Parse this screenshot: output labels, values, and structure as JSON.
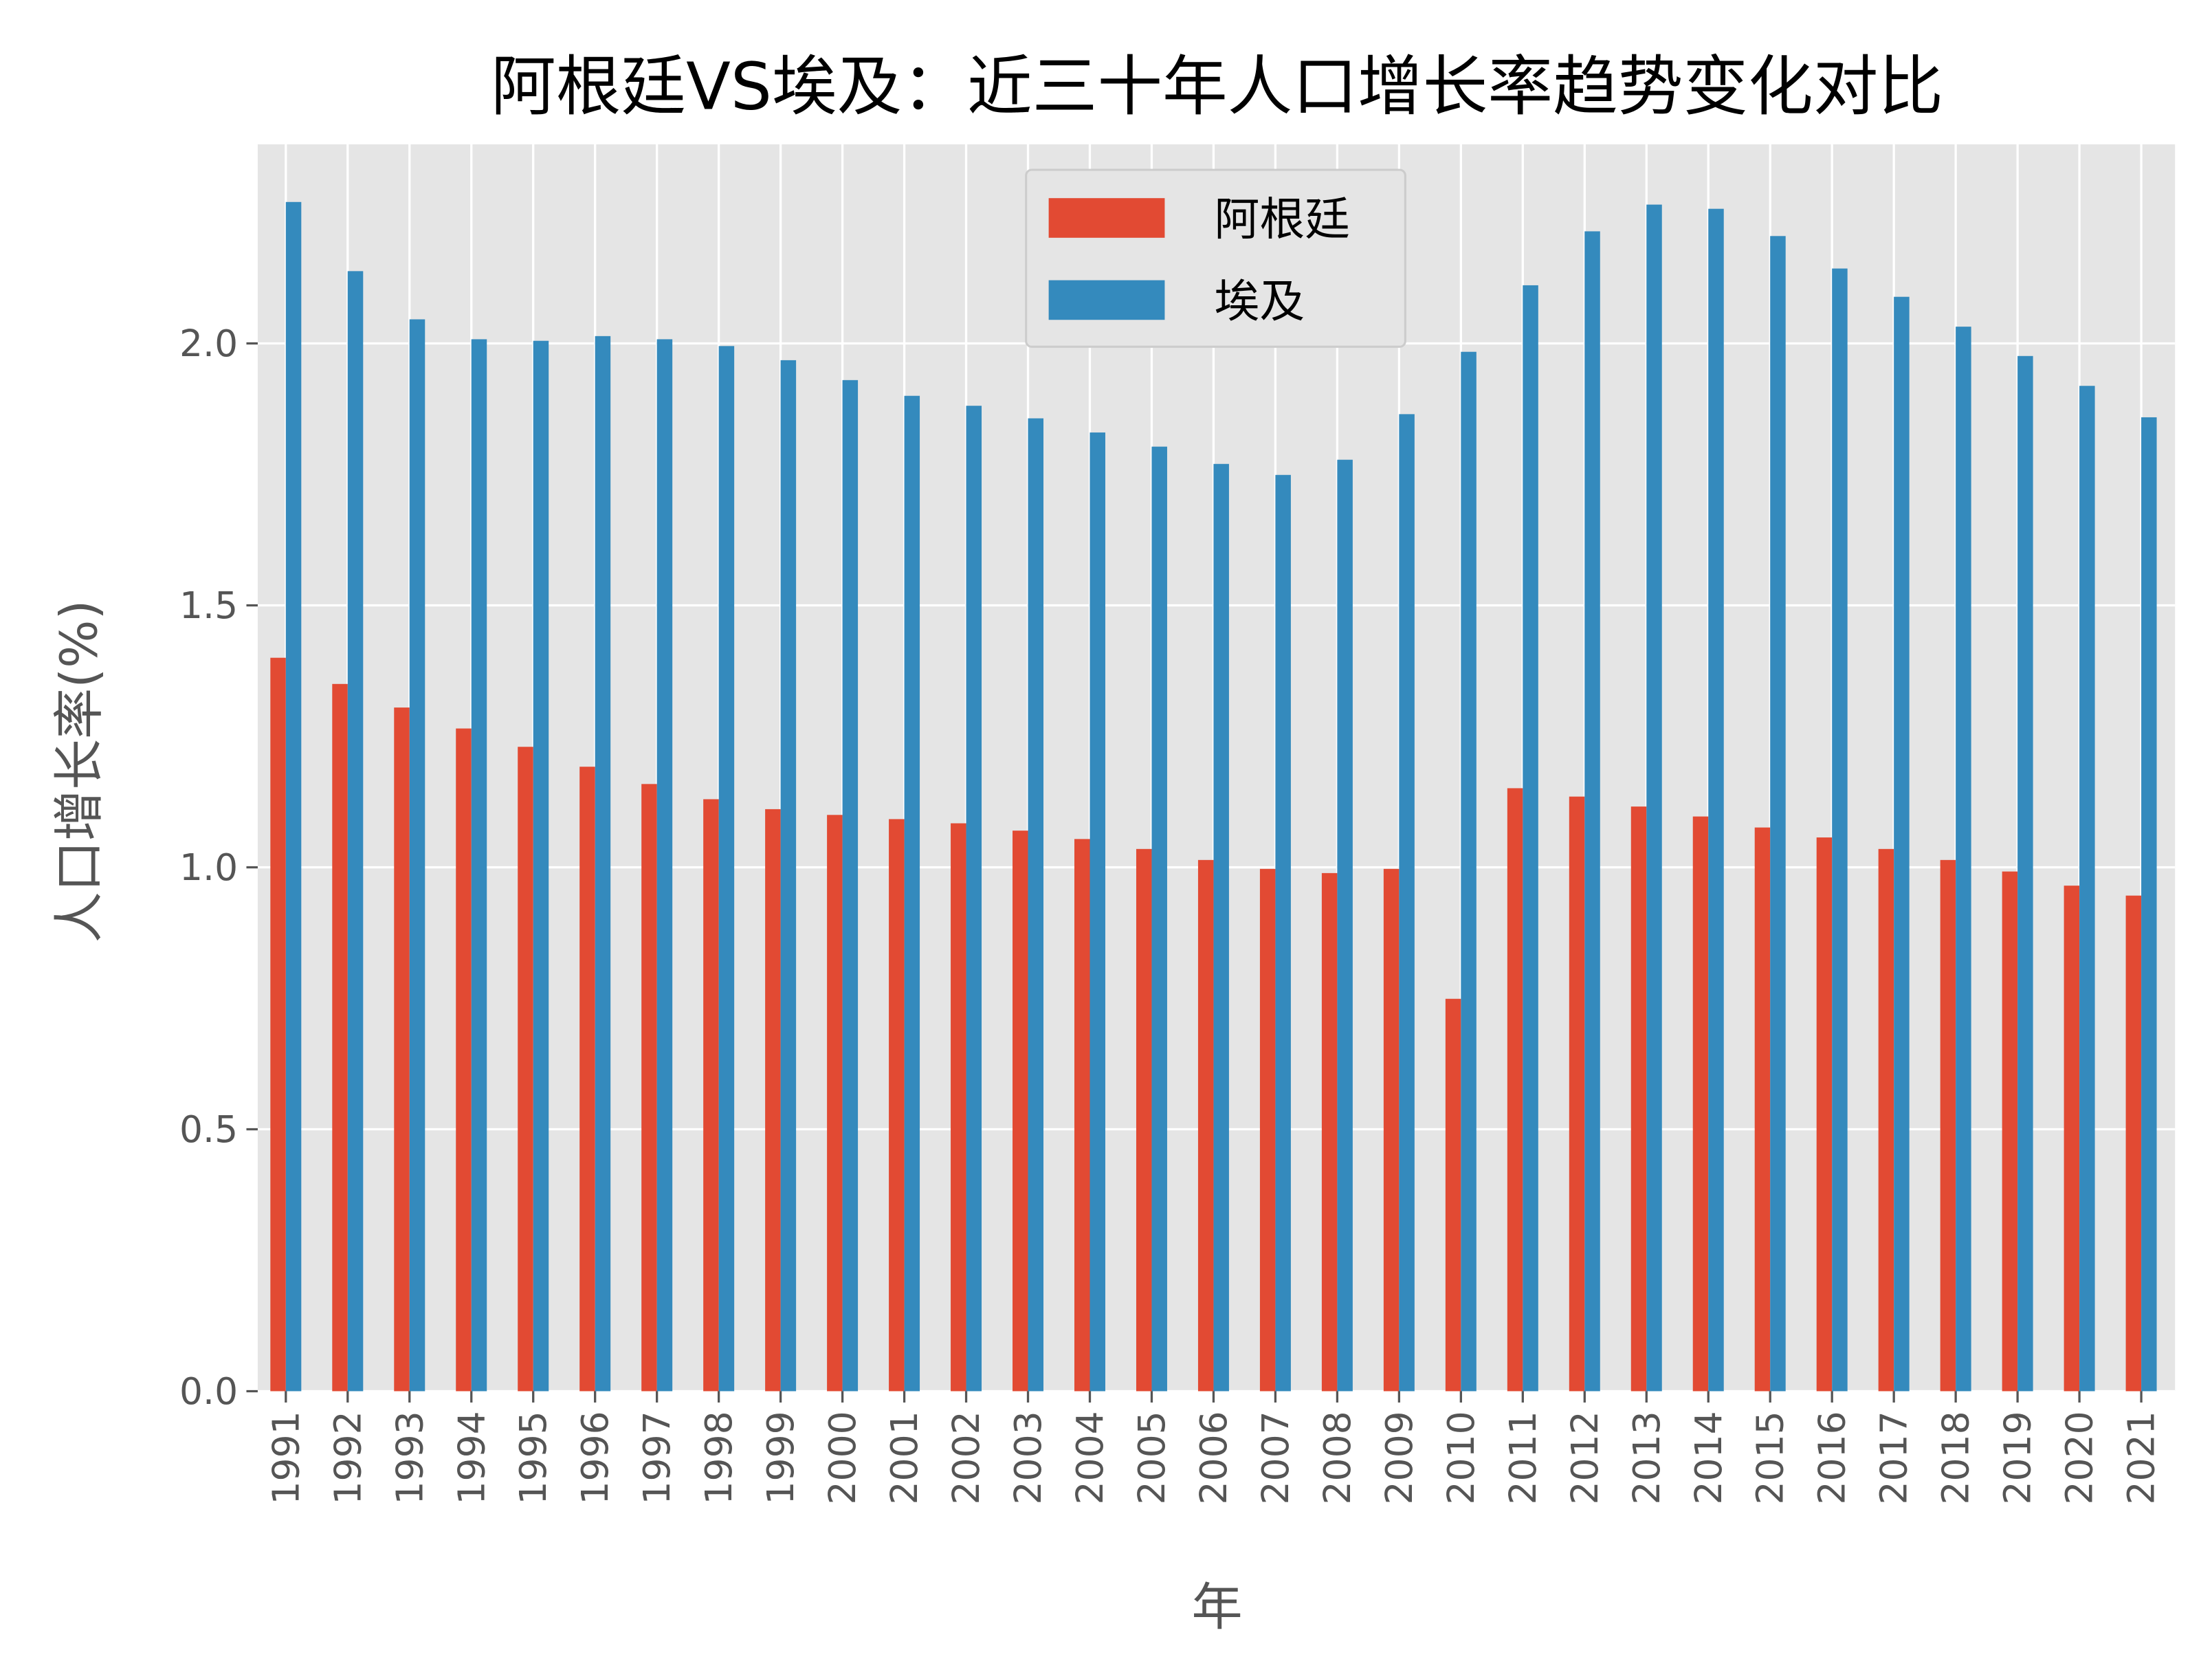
{
  "chart_data": {
    "type": "bar",
    "title": "阿根廷VS埃及：近三十年人口增长率趋势变化对比",
    "xlabel": "年",
    "ylabel": "人口增长率(%)",
    "ylim": [
      0,
      2.38
    ],
    "yticks": [
      "0.0",
      "0.5",
      "1.0",
      "1.5",
      "2.0"
    ],
    "grid": true,
    "legend_position": "top-center",
    "categories": [
      "1991",
      "1992",
      "1993",
      "1994",
      "1995",
      "1996",
      "1997",
      "1998",
      "1999",
      "2000",
      "2001",
      "2002",
      "2003",
      "2004",
      "2005",
      "2006",
      "2007",
      "2008",
      "2009",
      "2010",
      "2011",
      "2012",
      "2013",
      "2014",
      "2015",
      "2016",
      "2017",
      "2018",
      "2019",
      "2020",
      "2021"
    ],
    "series": [
      {
        "name": "阿根廷",
        "color": "#E24A33",
        "values": [
          1.4,
          1.35,
          1.305,
          1.265,
          1.23,
          1.192,
          1.159,
          1.13,
          1.111,
          1.1,
          1.092,
          1.084,
          1.07,
          1.054,
          1.035,
          1.014,
          0.997,
          0.989,
          0.997,
          0.749,
          1.151,
          1.135,
          1.116,
          1.097,
          1.076,
          1.057,
          1.035,
          1.014,
          0.992,
          0.965,
          0.946
        ]
      },
      {
        "name": "埃及",
        "color": "#348ABD",
        "values": [
          2.27,
          2.138,
          2.046,
          2.008,
          2.005,
          2.014,
          2.008,
          1.995,
          1.968,
          1.93,
          1.9,
          1.881,
          1.857,
          1.83,
          1.803,
          1.77,
          1.749,
          1.778,
          1.865,
          1.984,
          2.111,
          2.214,
          2.265,
          2.257,
          2.205,
          2.143,
          2.089,
          2.032,
          1.976,
          1.919,
          1.859
        ]
      }
    ],
    "colors": {
      "plot_background": "#E5E5E5",
      "grid": "#FFFFFF"
    }
  }
}
